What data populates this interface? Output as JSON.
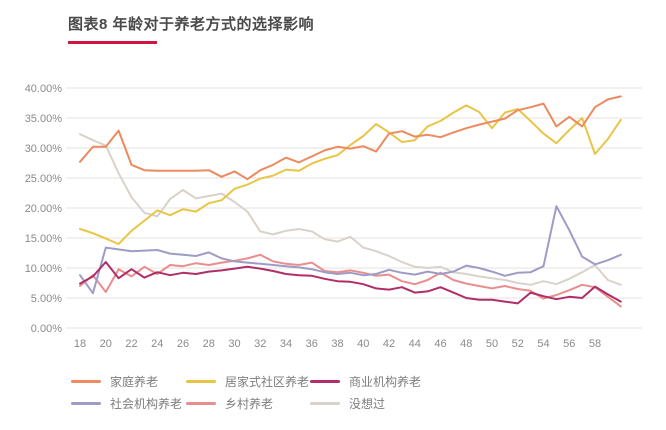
{
  "page": {
    "title": "图表8 年龄对于养老方式的选择影响"
  },
  "colors": {
    "title_text": "#4a4a4a",
    "title_underline": "#d21540",
    "axis_text": "#8a8a8a",
    "gridline": "#e5e3e1",
    "background": "#ffffff"
  },
  "chart_data": {
    "type": "line",
    "title": "图表8 年龄对于养老方式的选择影响",
    "xlabel": "",
    "ylabel": "",
    "x": [
      18,
      19,
      20,
      21,
      22,
      23,
      24,
      25,
      26,
      27,
      28,
      29,
      30,
      31,
      32,
      33,
      34,
      35,
      36,
      37,
      38,
      39,
      40,
      41,
      42,
      43,
      44,
      45,
      46,
      47,
      48,
      49,
      50,
      51,
      52,
      53,
      54,
      55,
      56,
      57,
      58,
      59,
      60
    ],
    "x_tick_labels": [
      "18",
      "20",
      "22",
      "24",
      "26",
      "28",
      "30",
      "32",
      "34",
      "36",
      "38",
      "40",
      "42",
      "44",
      "46",
      "48",
      "50",
      "52",
      "54",
      "56",
      "58"
    ],
    "y_tick_labels": [
      "0.00%",
      "5.00%",
      "10.00%",
      "15.00%",
      "20.00%",
      "25.00%",
      "30.00%",
      "35.00%",
      "40.00%"
    ],
    "ylim": [
      0,
      40
    ],
    "grid": true,
    "legend_position": "bottom",
    "series": [
      {
        "name": "家庭养老",
        "color": "#ec8a60",
        "values": [
          27.7,
          30.2,
          30.2,
          32.9,
          27.2,
          26.3,
          26.2,
          26.2,
          26.2,
          26.2,
          26.3,
          25.2,
          26.1,
          24.8,
          26.3,
          27.2,
          28.4,
          27.6,
          28.6,
          29.6,
          30.2,
          29.9,
          30.3,
          29.4,
          32.4,
          32.8,
          31.9,
          32.2,
          31.8,
          32.6,
          33.3,
          33.9,
          34.4,
          34.9,
          36.3,
          36.8,
          37.4,
          33.6,
          35.2,
          33.6,
          36.8,
          38.1,
          38.6
        ]
      },
      {
        "name": "居家式社区养老",
        "color": "#e9c546",
        "values": [
          16.5,
          15.8,
          14.9,
          14.0,
          16.2,
          17.9,
          19.6,
          18.8,
          19.8,
          19.4,
          20.8,
          21.3,
          23.2,
          23.9,
          24.9,
          25.4,
          26.4,
          26.2,
          27.4,
          28.2,
          28.8,
          30.5,
          32.0,
          34.0,
          32.6,
          31.0,
          31.3,
          33.6,
          34.5,
          35.9,
          37.1,
          36.0,
          33.3,
          35.9,
          36.5,
          34.5,
          32.4,
          30.8,
          33.0,
          35.0,
          29.0,
          31.5,
          34.7
        ]
      },
      {
        "name": "商业机构养老",
        "color": "#b02e68",
        "values": [
          7.4,
          8.6,
          11.0,
          8.3,
          9.8,
          8.4,
          9.3,
          8.8,
          9.2,
          9.0,
          9.4,
          9.6,
          9.9,
          10.2,
          9.9,
          9.5,
          9.0,
          8.8,
          8.7,
          8.2,
          7.8,
          7.7,
          7.3,
          6.6,
          6.4,
          6.8,
          5.9,
          6.1,
          6.8,
          5.9,
          5.0,
          4.7,
          4.7,
          4.4,
          4.1,
          5.9,
          5.3,
          4.8,
          5.2,
          5.0,
          6.9,
          5.6,
          4.4
        ]
      },
      {
        "name": "社会机构养老",
        "color": "#9e9cc6",
        "values": [
          8.8,
          5.8,
          13.4,
          13.1,
          12.8,
          12.9,
          13.0,
          12.4,
          12.2,
          12.0,
          12.6,
          11.6,
          11.1,
          10.9,
          10.7,
          10.5,
          10.3,
          10.1,
          9.8,
          9.3,
          9.0,
          9.2,
          8.8,
          9.0,
          9.7,
          9.2,
          8.9,
          9.4,
          9.0,
          9.4,
          10.4,
          10.0,
          9.4,
          8.7,
          9.2,
          9.3,
          10.3,
          20.3,
          16.3,
          11.9,
          10.6,
          11.3,
          12.2
        ]
      },
      {
        "name": "乡村养老",
        "color": "#e98e8e",
        "values": [
          7.0,
          8.8,
          6.0,
          9.8,
          8.6,
          10.2,
          9.0,
          10.5,
          10.3,
          10.8,
          10.5,
          10.9,
          11.2,
          11.6,
          12.2,
          11.1,
          10.7,
          10.5,
          10.9,
          9.5,
          9.3,
          9.6,
          9.2,
          8.7,
          8.9,
          7.8,
          7.3,
          8.0,
          9.2,
          8.0,
          7.4,
          7.0,
          6.6,
          7.0,
          6.5,
          6.2,
          4.9,
          5.5,
          6.3,
          7.2,
          6.8,
          5.2,
          3.6
        ]
      },
      {
        "name": "没想过",
        "color": "#d9d2cb",
        "values": [
          32.3,
          31.3,
          30.4,
          25.8,
          21.8,
          19.2,
          18.6,
          21.5,
          23.0,
          21.6,
          22.0,
          22.4,
          21.0,
          19.4,
          16.1,
          15.6,
          16.2,
          16.5,
          16.1,
          14.8,
          14.4,
          15.2,
          13.4,
          12.8,
          12.0,
          11.0,
          10.2,
          10.0,
          10.2,
          9.3,
          9.0,
          8.6,
          8.3,
          8.0,
          7.5,
          7.2,
          7.8,
          7.3,
          8.2,
          9.3,
          10.5,
          8.0,
          7.2
        ]
      }
    ]
  }
}
